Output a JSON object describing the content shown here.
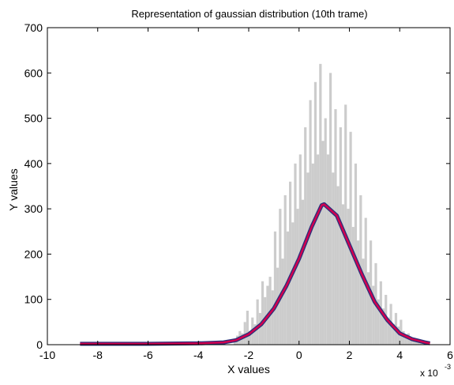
{
  "chart_data": {
    "type": "histogram",
    "title": "Representation of gaussian distribution (10th trame)",
    "xlabel": "X values",
    "ylabel": "Y values",
    "x_multiplier_label": "x 10",
    "x_multiplier_exponent": "-3",
    "xlim": [
      -10,
      6
    ],
    "ylim": [
      0,
      700
    ],
    "xticks": [
      -10,
      -8,
      -6,
      -4,
      -2,
      0,
      2,
      4,
      6
    ],
    "yticks": [
      0,
      100,
      200,
      300,
      400,
      500,
      600,
      700
    ],
    "grid": false,
    "colors": {
      "histogram": "#cccccc",
      "fit_outer": "#2a2f7a",
      "fit_inner": "#d1004f"
    },
    "histogram": {
      "bin_width": 0.1,
      "bins": [
        {
          "x": -2.55,
          "y": 10
        },
        {
          "x": -2.45,
          "y": 20
        },
        {
          "x": -2.35,
          "y": 30
        },
        {
          "x": -2.25,
          "y": 25
        },
        {
          "x": -2.15,
          "y": 50
        },
        {
          "x": -2.05,
          "y": 75
        },
        {
          "x": -1.95,
          "y": 30
        },
        {
          "x": -1.85,
          "y": 60
        },
        {
          "x": -1.75,
          "y": 45
        },
        {
          "x": -1.65,
          "y": 100
        },
        {
          "x": -1.55,
          "y": 70
        },
        {
          "x": -1.45,
          "y": 140
        },
        {
          "x": -1.35,
          "y": 105
        },
        {
          "x": -1.25,
          "y": 130
        },
        {
          "x": -1.15,
          "y": 150
        },
        {
          "x": -1.05,
          "y": 120
        },
        {
          "x": -0.95,
          "y": 250
        },
        {
          "x": -0.85,
          "y": 170
        },
        {
          "x": -0.75,
          "y": 300
        },
        {
          "x": -0.65,
          "y": 190
        },
        {
          "x": -0.55,
          "y": 330
        },
        {
          "x": -0.45,
          "y": 250
        },
        {
          "x": -0.35,
          "y": 360
        },
        {
          "x": -0.25,
          "y": 270
        },
        {
          "x": -0.15,
          "y": 400
        },
        {
          "x": -0.05,
          "y": 300
        },
        {
          "x": 0.05,
          "y": 420
        },
        {
          "x": 0.15,
          "y": 320
        },
        {
          "x": 0.25,
          "y": 480
        },
        {
          "x": 0.35,
          "y": 380
        },
        {
          "x": 0.45,
          "y": 540
        },
        {
          "x": 0.55,
          "y": 400
        },
        {
          "x": 0.65,
          "y": 580
        },
        {
          "x": 0.75,
          "y": 420
        },
        {
          "x": 0.85,
          "y": 620
        },
        {
          "x": 0.95,
          "y": 450
        },
        {
          "x": 1.05,
          "y": 500
        },
        {
          "x": 1.15,
          "y": 420
        },
        {
          "x": 1.25,
          "y": 600
        },
        {
          "x": 1.35,
          "y": 380
        },
        {
          "x": 1.45,
          "y": 520
        },
        {
          "x": 1.55,
          "y": 350
        },
        {
          "x": 1.65,
          "y": 480
        },
        {
          "x": 1.75,
          "y": 310
        },
        {
          "x": 1.85,
          "y": 530
        },
        {
          "x": 1.95,
          "y": 300
        },
        {
          "x": 2.05,
          "y": 470
        },
        {
          "x": 2.15,
          "y": 260
        },
        {
          "x": 2.25,
          "y": 400
        },
        {
          "x": 2.35,
          "y": 230
        },
        {
          "x": 2.45,
          "y": 330
        },
        {
          "x": 2.55,
          "y": 190
        },
        {
          "x": 2.65,
          "y": 280
        },
        {
          "x": 2.75,
          "y": 160
        },
        {
          "x": 2.85,
          "y": 230
        },
        {
          "x": 2.95,
          "y": 130
        },
        {
          "x": 3.05,
          "y": 180
        },
        {
          "x": 3.15,
          "y": 100
        },
        {
          "x": 3.25,
          "y": 140
        },
        {
          "x": 3.35,
          "y": 80
        },
        {
          "x": 3.45,
          "y": 110
        },
        {
          "x": 3.55,
          "y": 60
        },
        {
          "x": 3.65,
          "y": 90
        },
        {
          "x": 3.75,
          "y": 45
        },
        {
          "x": 3.85,
          "y": 70
        },
        {
          "x": 3.95,
          "y": 40
        },
        {
          "x": 4.05,
          "y": 55
        },
        {
          "x": 4.15,
          "y": 30
        },
        {
          "x": 4.25,
          "y": 20
        },
        {
          "x": 4.35,
          "y": 25
        },
        {
          "x": 4.45,
          "y": 12
        },
        {
          "x": 4.55,
          "y": 8
        },
        {
          "x": 4.65,
          "y": 10
        },
        {
          "x": 4.75,
          "y": 5
        },
        {
          "x": 4.85,
          "y": 4
        },
        {
          "x": 4.95,
          "y": 3
        }
      ]
    },
    "fit_curve": {
      "type": "line",
      "points": [
        [
          -8.7,
          2
        ],
        [
          -6,
          2
        ],
        [
          -4,
          3
        ],
        [
          -3,
          5
        ],
        [
          -2.5,
          10
        ],
        [
          -2,
          23
        ],
        [
          -1.5,
          45
        ],
        [
          -1,
          80
        ],
        [
          -0.5,
          130
        ],
        [
          0,
          190
        ],
        [
          0.5,
          260
        ],
        [
          0.9,
          308
        ],
        [
          1.0,
          310
        ],
        [
          1.5,
          285
        ],
        [
          2,
          220
        ],
        [
          2.5,
          155
        ],
        [
          3,
          95
        ],
        [
          3.5,
          55
        ],
        [
          4,
          25
        ],
        [
          4.5,
          12
        ],
        [
          5,
          5
        ],
        [
          5.2,
          3
        ]
      ]
    }
  }
}
